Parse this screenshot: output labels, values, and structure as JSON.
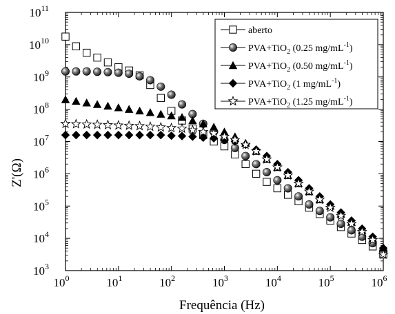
{
  "chart_data": {
    "type": "scatter",
    "xlabel": "Frequência (Hz)",
    "ylabel": "Z'(Ω)",
    "x_scale": "log",
    "y_scale": "log",
    "xlim": [
      1,
      1000000
    ],
    "ylim": [
      1000,
      100000000000
    ],
    "x_ticks": [
      {
        "value": 1,
        "base": "10",
        "exp": "0"
      },
      {
        "value": 10,
        "base": "10",
        "exp": "1"
      },
      {
        "value": 100,
        "base": "10",
        "exp": "2"
      },
      {
        "value": 1000,
        "base": "10",
        "exp": "3"
      },
      {
        "value": 10000,
        "base": "10",
        "exp": "4"
      },
      {
        "value": 100000,
        "base": "10",
        "exp": "5"
      },
      {
        "value": 1000000,
        "base": "10",
        "exp": "6"
      }
    ],
    "y_ticks": [
      {
        "value": 1000,
        "base": "10",
        "exp": "3"
      },
      {
        "value": 10000,
        "base": "10",
        "exp": "4"
      },
      {
        "value": 100000,
        "base": "10",
        "exp": "5"
      },
      {
        "value": 1000000,
        "base": "10",
        "exp": "6"
      },
      {
        "value": 10000000,
        "base": "10",
        "exp": "7"
      },
      {
        "value": 100000000,
        "base": "10",
        "exp": "8"
      },
      {
        "value": 1000000000,
        "base": "10",
        "exp": "9"
      },
      {
        "value": 10000000000,
        "base": "10",
        "exp": "10"
      },
      {
        "value": 100000000000,
        "base": "10",
        "exp": "11"
      }
    ],
    "legend_position": "top-right",
    "grid": false,
    "series": [
      {
        "name": "aberto",
        "marker": "square-open",
        "color": "#000000",
        "x_log": [
          0,
          0.2,
          0.4,
          0.6,
          0.8,
          1.0,
          1.2,
          1.4,
          1.6,
          1.8,
          2.0,
          2.2,
          2.4,
          2.6,
          2.8,
          3.0,
          3.2,
          3.4,
          3.6,
          3.8,
          4.0,
          4.2,
          4.4,
          4.6,
          4.8,
          5.0,
          5.2,
          5.4,
          5.6,
          5.8,
          6.0
        ],
        "y_log": [
          10.25,
          9.95,
          9.75,
          9.6,
          9.45,
          9.3,
          9.2,
          9.05,
          8.75,
          8.35,
          7.95,
          7.65,
          7.4,
          7.2,
          7.0,
          6.85,
          6.6,
          6.3,
          6.0,
          5.75,
          5.55,
          5.35,
          5.15,
          4.95,
          4.75,
          4.55,
          4.35,
          4.15,
          3.95,
          3.75,
          3.5
        ]
      },
      {
        "name": "PVA+TiO₂ (0.25 mg/mL⁻¹)",
        "legend_main": "PVA+TiO",
        "legend_sub": "2",
        "legend_rest": " (0.25 mg/mL",
        "legend_sup": "-1",
        "legend_end": ")",
        "marker": "sphere",
        "color": "#222222",
        "x_log": [
          0,
          0.2,
          0.4,
          0.6,
          0.8,
          1.0,
          1.2,
          1.4,
          1.6,
          1.8,
          2.0,
          2.2,
          2.4,
          2.6,
          2.8,
          3.0,
          3.2,
          3.4,
          3.6,
          3.8,
          4.0,
          4.2,
          4.4,
          4.6,
          4.8,
          5.0,
          5.2,
          5.4,
          5.6,
          5.8,
          6.0
        ],
        "y_log": [
          9.17,
          9.17,
          9.17,
          9.16,
          9.15,
          9.13,
          9.1,
          9.02,
          8.9,
          8.7,
          8.45,
          8.15,
          7.85,
          7.55,
          7.3,
          7.05,
          6.8,
          6.55,
          6.3,
          6.05,
          5.8,
          5.55,
          5.3,
          5.05,
          4.85,
          4.65,
          4.45,
          4.25,
          4.05,
          3.85,
          3.6
        ]
      },
      {
        "name": "PVA+TiO₂ (0.50 mg/mL⁻¹)",
        "legend_main": "PVA+TiO",
        "legend_sub": "2",
        "legend_rest": " (0.50 mg/mL",
        "legend_sup": "-1",
        "legend_end": ")",
        "marker": "triangle",
        "color": "#000000",
        "x_log": [
          0,
          0.2,
          0.4,
          0.6,
          0.8,
          1.0,
          1.2,
          1.4,
          1.6,
          1.8,
          2.0,
          2.2,
          2.4,
          2.6,
          2.8,
          3.0,
          3.2,
          3.4,
          3.6,
          3.8,
          4.0,
          4.2,
          4.4,
          4.6,
          4.8,
          5.0,
          5.2,
          5.4,
          5.6,
          5.8,
          6.0
        ],
        "y_log": [
          8.3,
          8.25,
          8.2,
          8.15,
          8.1,
          8.05,
          8.0,
          7.95,
          7.9,
          7.85,
          7.8,
          7.75,
          7.65,
          7.55,
          7.45,
          7.3,
          7.15,
          6.95,
          6.7,
          6.45,
          6.2,
          5.95,
          5.7,
          5.45,
          5.2,
          5.0,
          4.75,
          4.5,
          4.25,
          4.0,
          3.7
        ]
      },
      {
        "name": "PVA+TiO₂ (1 mg/mL⁻¹)",
        "legend_main": "PVA+TiO",
        "legend_sub": "2",
        "legend_rest": " (1 mg/mL",
        "legend_sup": "-1",
        "legend_end": ")",
        "marker": "diamond",
        "color": "#000000",
        "x_log": [
          0,
          0.2,
          0.4,
          0.6,
          0.8,
          1.0,
          1.2,
          1.4,
          1.6,
          1.8,
          2.0,
          2.2,
          2.4,
          2.6,
          2.8,
          3.0,
          3.2,
          3.4,
          3.6,
          3.8,
          4.0,
          4.2,
          4.4,
          4.6,
          4.8,
          5.0,
          5.2,
          5.4,
          5.6,
          5.8,
          6.0
        ],
        "y_log": [
          7.2,
          7.2,
          7.2,
          7.2,
          7.2,
          7.2,
          7.2,
          7.2,
          7.2,
          7.2,
          7.18,
          7.17,
          7.15,
          7.12,
          7.1,
          7.05,
          7.0,
          6.9,
          6.75,
          6.55,
          6.3,
          6.05,
          5.8,
          5.55,
          5.3,
          5.05,
          4.8,
          4.55,
          4.3,
          4.05,
          3.7
        ]
      },
      {
        "name": "PVA+TiO₂ (1.25 mg/mL⁻¹)",
        "legend_main": "PVA+TiO",
        "legend_sub": "2",
        "legend_rest": " (1.25 mg/mL",
        "legend_sup": "-1",
        "legend_end": ")",
        "marker": "star-open",
        "color": "#000000",
        "x_log": [
          0,
          0.2,
          0.4,
          0.6,
          0.8,
          1.0,
          1.2,
          1.4,
          1.6,
          1.8,
          2.0,
          2.2,
          2.4,
          2.6,
          2.8,
          3.0,
          3.2,
          3.4,
          3.6,
          3.8,
          4.0,
          4.2,
          4.4,
          4.6,
          4.8,
          5.0,
          5.2,
          5.4,
          5.6,
          5.8,
          6.0
        ],
        "y_log": [
          7.55,
          7.54,
          7.53,
          7.52,
          7.51,
          7.5,
          7.49,
          7.48,
          7.46,
          7.44,
          7.42,
          7.4,
          7.35,
          7.3,
          7.25,
          7.15,
          7.05,
          6.9,
          6.7,
          6.45,
          6.2,
          5.95,
          5.7,
          5.45,
          5.2,
          4.95,
          4.7,
          4.45,
          4.2,
          3.95,
          3.5
        ]
      }
    ]
  }
}
